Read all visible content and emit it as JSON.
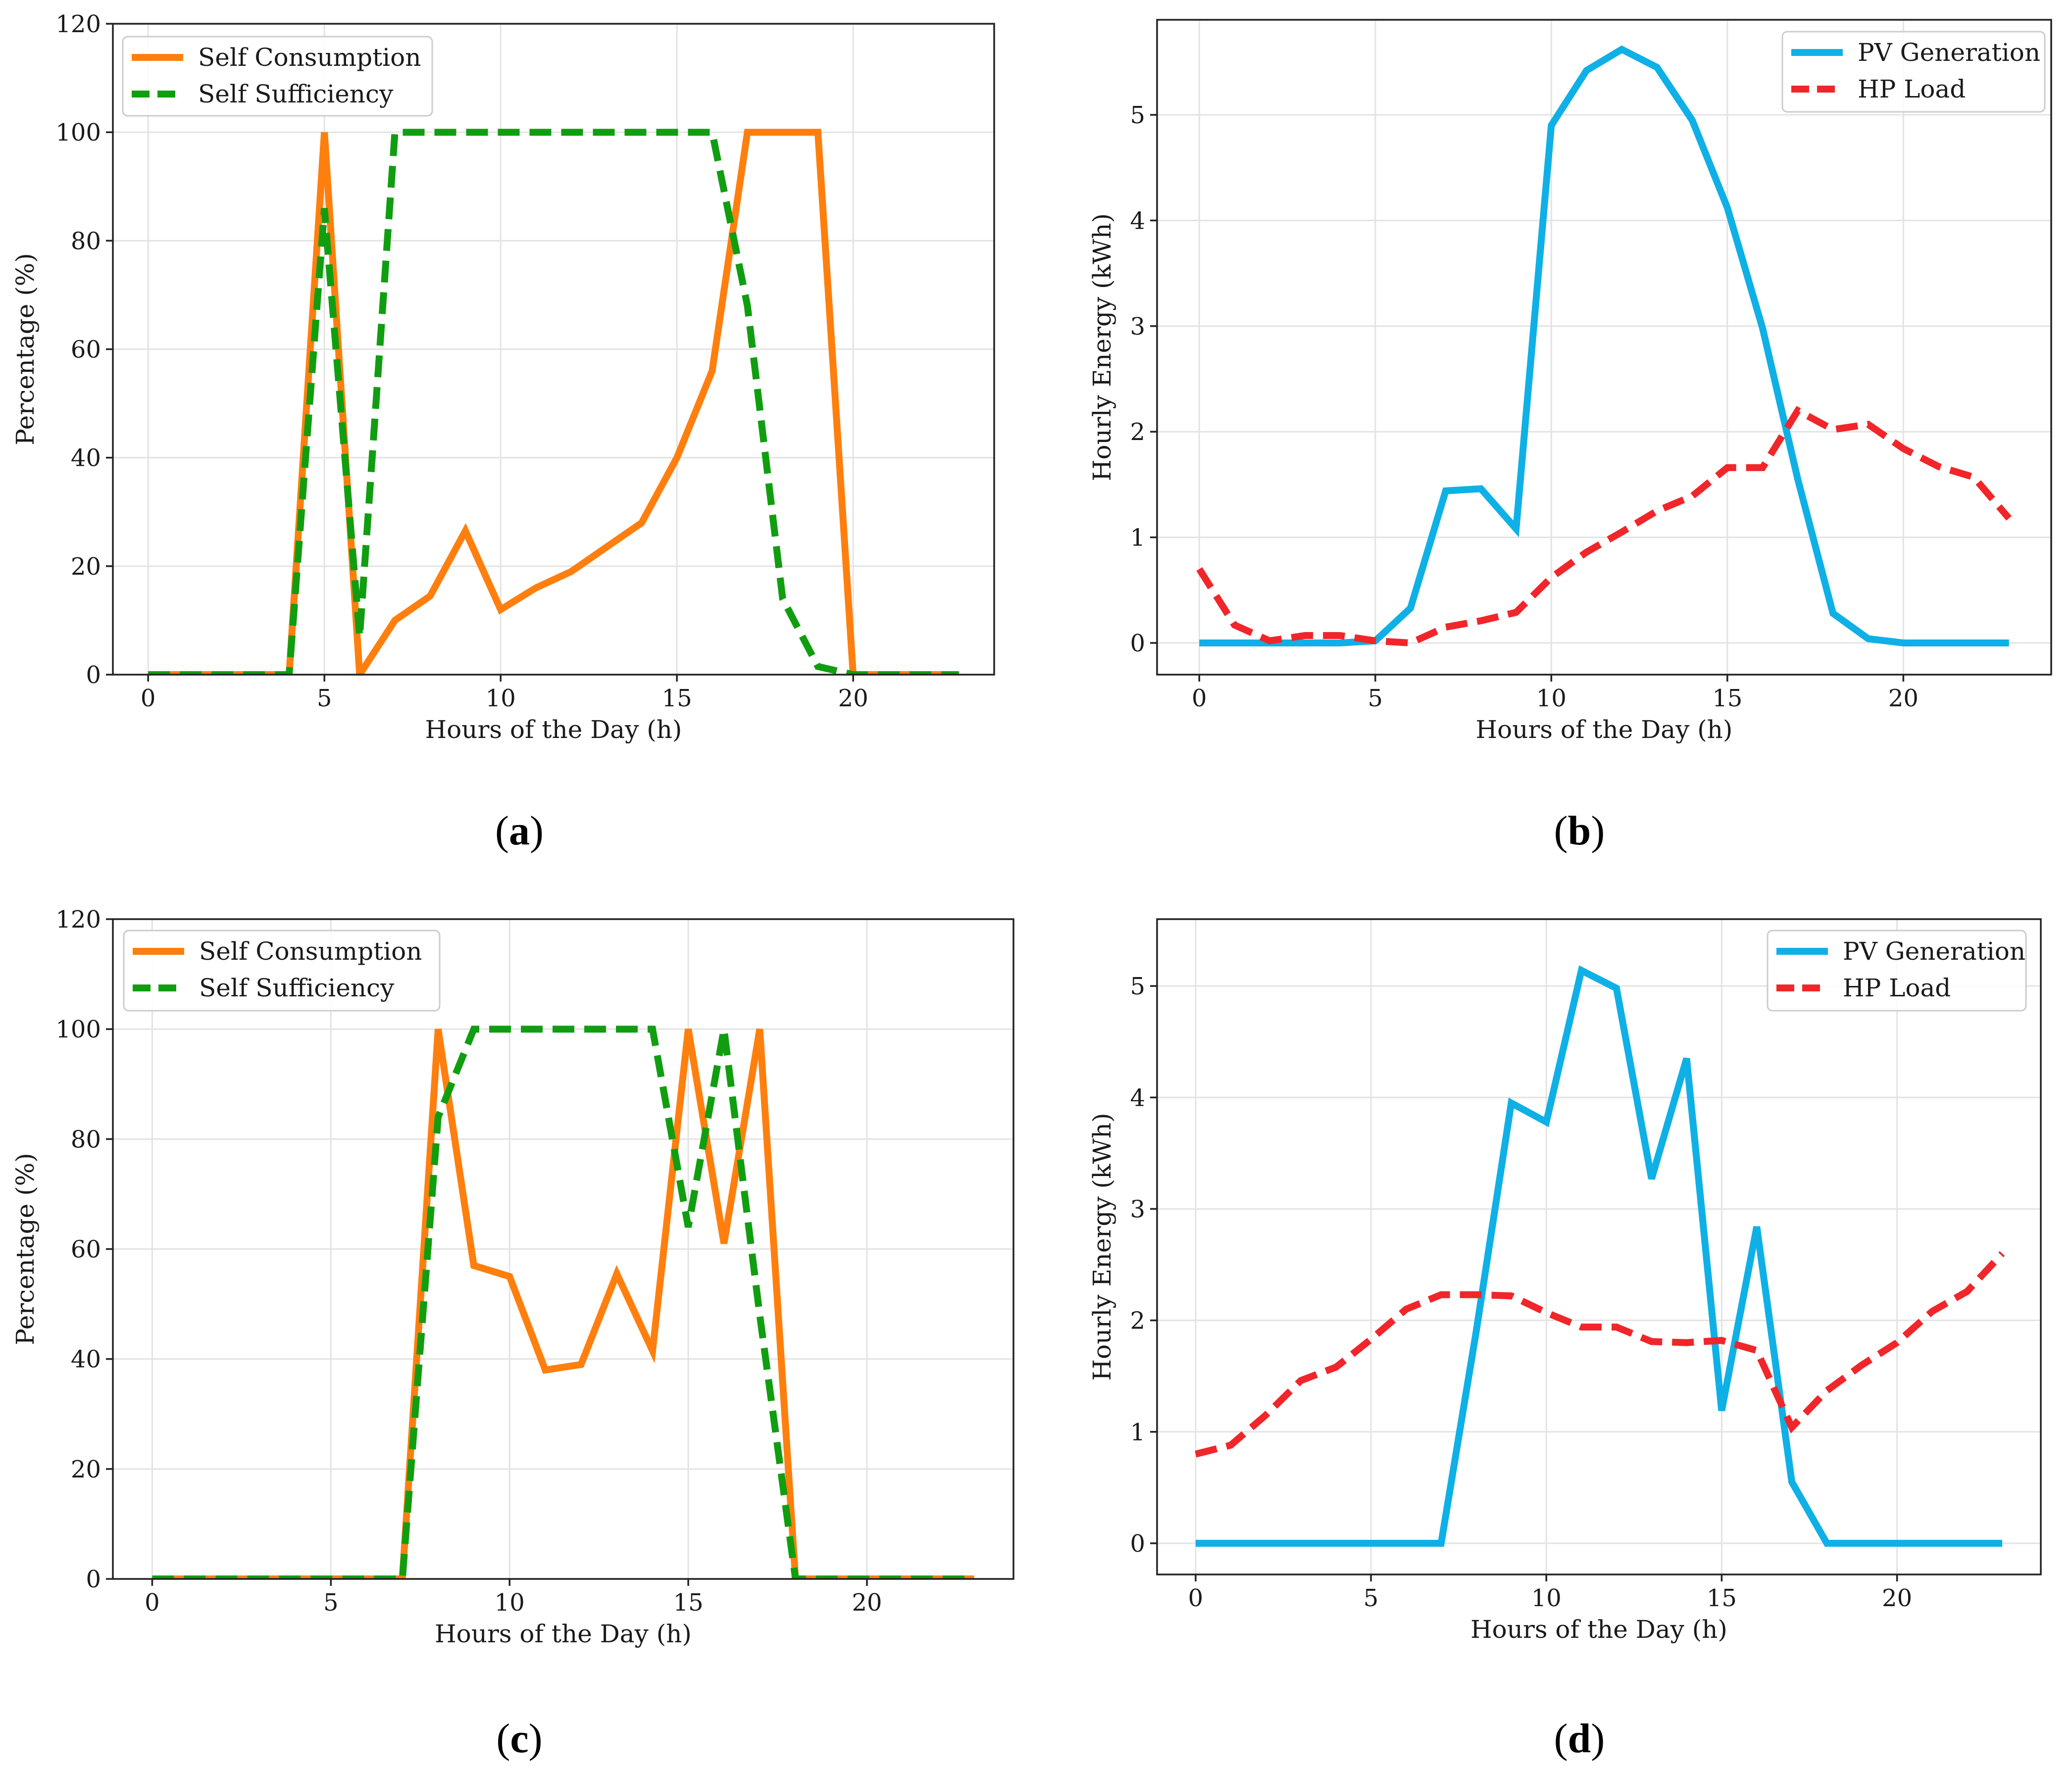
{
  "figure": {
    "panels": [
      "a",
      "b",
      "c",
      "d"
    ]
  },
  "chart_data": [
    {
      "id": "a",
      "type": "line",
      "caption": "a",
      "xlabel": "Hours of the Day (h)",
      "ylabel": "Percentage (%)",
      "xlim": [
        -1,
        24
      ],
      "ylim": [
        0,
        120
      ],
      "xticks": [
        0,
        5,
        10,
        15,
        20
      ],
      "yticks": [
        0,
        20,
        40,
        60,
        80,
        100,
        120
      ],
      "grid": true,
      "legend_position": "top-left",
      "x": [
        0,
        1,
        2,
        3,
        4,
        5,
        6,
        7,
        8,
        9,
        10,
        11,
        12,
        13,
        14,
        15,
        16,
        17,
        18,
        19,
        20,
        21,
        22,
        23
      ],
      "series": [
        {
          "name": "Self Consumption",
          "color": "#ff7f0e",
          "dash": "solid",
          "values": [
            0,
            0,
            0,
            0,
            0,
            100,
            0,
            10,
            14.5,
            26.5,
            12,
            16,
            19,
            23.5,
            28,
            40,
            56,
            100,
            100,
            100,
            0,
            0,
            0,
            0
          ]
        },
        {
          "name": "Self Sufficiency",
          "color": "#109e10",
          "dash": "dashed",
          "values": [
            0,
            0,
            0,
            0,
            0,
            86,
            7,
            100,
            100,
            100,
            100,
            100,
            100,
            100,
            100,
            100,
            100,
            68,
            14,
            1.5,
            0,
            0,
            0,
            0
          ]
        }
      ]
    },
    {
      "id": "b",
      "type": "line",
      "caption": "b",
      "xlabel": "Hours of the Day (h)",
      "ylabel": "Hourly Energy (kWh)",
      "xlim": [
        -1.2,
        24.2
      ],
      "ylim": [
        -0.3,
        5.9
      ],
      "xticks": [
        0,
        5,
        10,
        15,
        20
      ],
      "yticks": [
        0,
        1,
        2,
        3,
        4,
        5
      ],
      "grid": true,
      "legend_position": "top-right",
      "x": [
        0,
        1,
        2,
        3,
        4,
        5,
        6,
        7,
        8,
        9,
        10,
        11,
        12,
        13,
        14,
        15,
        16,
        17,
        18,
        19,
        20,
        21,
        22,
        23
      ],
      "series": [
        {
          "name": "PV Generation",
          "color": "#0fb0e6",
          "dash": "solid",
          "values": [
            0,
            0,
            0,
            0,
            0,
            0.02,
            0.33,
            1.44,
            1.46,
            1.08,
            4.9,
            5.42,
            5.62,
            5.45,
            4.95,
            4.12,
            2.98,
            1.55,
            0.28,
            0.04,
            0,
            0,
            0,
            0
          ]
        },
        {
          "name": "HP Load",
          "color": "#f0262a",
          "dash": "dashed",
          "values": [
            0.7,
            0.17,
            0.02,
            0.07,
            0.07,
            0.02,
            0,
            0.15,
            0.21,
            0.29,
            0.62,
            0.86,
            1.05,
            1.25,
            1.39,
            1.66,
            1.66,
            2.2,
            2.02,
            2.07,
            1.84,
            1.67,
            1.57,
            1.18
          ]
        }
      ]
    },
    {
      "id": "c",
      "type": "line",
      "caption": "c",
      "xlabel": "Hours of the Day (h)",
      "ylabel": "Percentage (%)",
      "xlim": [
        -1.1,
        24.1
      ],
      "ylim": [
        0,
        120
      ],
      "xticks": [
        0,
        5,
        10,
        15,
        20
      ],
      "yticks": [
        0,
        20,
        40,
        60,
        80,
        100,
        120
      ],
      "grid": true,
      "legend_position": "top-left",
      "x": [
        0,
        1,
        2,
        3,
        4,
        5,
        6,
        7,
        8,
        9,
        10,
        11,
        12,
        13,
        14,
        15,
        16,
        17,
        18,
        19,
        20,
        21,
        22,
        23
      ],
      "series": [
        {
          "name": "Self Consumption",
          "color": "#ff7f0e",
          "dash": "solid",
          "values": [
            0,
            0,
            0,
            0,
            0,
            0,
            0,
            0,
            100,
            57,
            55,
            38,
            39,
            55.5,
            41.5,
            100,
            61,
            100,
            0,
            0,
            0,
            0,
            0,
            0
          ]
        },
        {
          "name": "Self Sufficiency",
          "color": "#109e10",
          "dash": "dashed",
          "values": [
            0,
            0,
            0,
            0,
            0,
            0,
            0,
            0,
            84,
            100,
            100,
            100,
            100,
            100,
            100,
            64,
            100,
            48,
            0,
            0,
            0,
            0,
            0,
            0
          ]
        }
      ]
    },
    {
      "id": "d",
      "type": "line",
      "caption": "d",
      "xlabel": "Hours of the Day (h)",
      "ylabel": "Hourly Energy (kWh)",
      "xlim": [
        -1.1,
        24.1
      ],
      "ylim": [
        -0.28,
        5.6
      ],
      "xticks": [
        0,
        5,
        10,
        15,
        20
      ],
      "yticks": [
        0,
        1,
        2,
        3,
        4,
        5
      ],
      "grid": true,
      "legend_position": "top-right",
      "x": [
        0,
        1,
        2,
        3,
        4,
        5,
        6,
        7,
        8,
        9,
        10,
        11,
        12,
        13,
        14,
        15,
        16,
        17,
        18,
        19,
        20,
        21,
        22,
        23
      ],
      "series": [
        {
          "name": "PV Generation",
          "color": "#0fb0e6",
          "dash": "solid",
          "values": [
            0,
            0,
            0,
            0,
            0,
            0,
            0,
            0,
            1.9,
            3.95,
            3.78,
            5.14,
            4.98,
            3.27,
            4.35,
            1.19,
            2.84,
            0.55,
            0,
            0,
            0,
            0,
            0,
            0
          ]
        },
        {
          "name": "HP Load",
          "color": "#f0262a",
          "dash": "dashed",
          "values": [
            0.8,
            0.88,
            1.15,
            1.46,
            1.58,
            1.83,
            2.1,
            2.23,
            2.23,
            2.22,
            2.07,
            1.94,
            1.94,
            1.81,
            1.8,
            1.82,
            1.73,
            1.04,
            1.37,
            1.6,
            1.8,
            2.08,
            2.26,
            2.6
          ]
        }
      ]
    }
  ]
}
